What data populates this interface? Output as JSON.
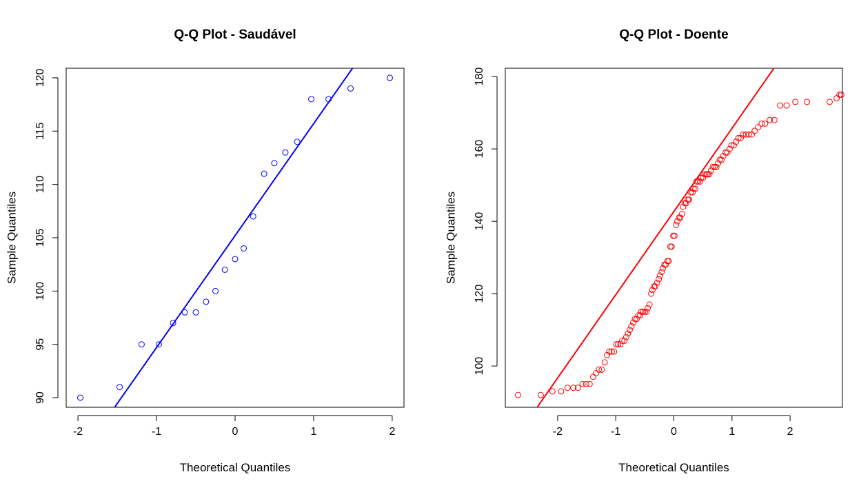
{
  "chart_data": [
    {
      "type": "scatter",
      "title": "Q-Q Plot - Saudável",
      "xlabel": "Theoretical Quantiles",
      "ylabel": "Sample Quantiles",
      "xlim": [
        -2.15,
        2.15
      ],
      "ylim": [
        89.1,
        120.9
      ],
      "xticks": [
        -2,
        -1,
        0,
        1,
        2
      ],
      "yticks": [
        90,
        95,
        100,
        105,
        110,
        115,
        120
      ],
      "point_color": "#0000ff",
      "line_color": "#0000ff",
      "grid": false,
      "points": [
        [
          -1.97,
          90
        ],
        [
          -1.47,
          91
        ],
        [
          -1.19,
          95
        ],
        [
          -0.97,
          95
        ],
        [
          -0.79,
          97
        ],
        [
          -0.64,
          98
        ],
        [
          -0.5,
          98
        ],
        [
          -0.37,
          99
        ],
        [
          -0.25,
          100
        ],
        [
          -0.13,
          102
        ],
        [
          0.0,
          103
        ],
        [
          0.11,
          104
        ],
        [
          0.23,
          107
        ],
        [
          0.37,
          111
        ],
        [
          0.5,
          112
        ],
        [
          0.64,
          113
        ],
        [
          0.79,
          114
        ],
        [
          0.97,
          118
        ],
        [
          1.19,
          118
        ],
        [
          1.47,
          119
        ],
        [
          1.97,
          120
        ]
      ],
      "line": {
        "intercept": 105.2,
        "slope": 10.5
      }
    },
    {
      "type": "scatter",
      "title": "Q-Q Plot - Doente",
      "xlabel": "Theoretical Quantiles",
      "ylabel": "Sample Quantiles",
      "xlim": [
        -2.9,
        2.9
      ],
      "ylim": [
        88.6,
        182.3
      ],
      "xticks": [
        -2,
        -1,
        0,
        1,
        2
      ],
      "yticks": [
        100,
        120,
        140,
        160,
        180
      ],
      "point_color": "#ff0000",
      "line_color": "#ff0000",
      "grid": false,
      "points": [
        [
          -2.68,
          92
        ],
        [
          -2.29,
          92
        ],
        [
          -2.09,
          93
        ],
        [
          -1.94,
          93
        ],
        [
          -1.83,
          94
        ],
        [
          -1.73,
          94
        ],
        [
          -1.65,
          94
        ],
        [
          -1.57,
          95
        ],
        [
          -1.51,
          95
        ],
        [
          -1.45,
          95
        ],
        [
          -1.39,
          97
        ],
        [
          -1.34,
          98
        ],
        [
          -1.29,
          99
        ],
        [
          -1.24,
          99
        ],
        [
          -1.19,
          101
        ],
        [
          -1.15,
          103
        ],
        [
          -1.11,
          104
        ],
        [
          -1.07,
          104
        ],
        [
          -1.03,
          104
        ],
        [
          -0.99,
          106
        ],
        [
          -0.96,
          106
        ],
        [
          -0.92,
          106
        ],
        [
          -0.89,
          107
        ],
        [
          -0.85,
          107
        ],
        [
          -0.82,
          108
        ],
        [
          -0.79,
          109
        ],
        [
          -0.76,
          110
        ],
        [
          -0.73,
          111
        ],
        [
          -0.7,
          112
        ],
        [
          -0.67,
          113
        ],
        [
          -0.64,
          113
        ],
        [
          -0.61,
          114
        ],
        [
          -0.58,
          114
        ],
        [
          -0.56,
          115
        ],
        [
          -0.53,
          115
        ],
        [
          -0.5,
          115
        ],
        [
          -0.47,
          115
        ],
        [
          -0.45,
          116
        ],
        [
          -0.42,
          117
        ],
        [
          -0.39,
          120
        ],
        [
          -0.37,
          121
        ],
        [
          -0.34,
          122
        ],
        [
          -0.32,
          122
        ],
        [
          -0.29,
          123
        ],
        [
          -0.26,
          124
        ],
        [
          -0.24,
          125
        ],
        [
          -0.21,
          126
        ],
        [
          -0.19,
          127
        ],
        [
          -0.16,
          128
        ],
        [
          -0.14,
          128
        ],
        [
          -0.11,
          129
        ],
        [
          -0.09,
          129
        ],
        [
          -0.06,
          133
        ],
        [
          -0.04,
          133
        ],
        [
          -0.01,
          136
        ],
        [
          0.01,
          136
        ],
        [
          0.04,
          139
        ],
        [
          0.06,
          140
        ],
        [
          0.09,
          141
        ],
        [
          0.11,
          141
        ],
        [
          0.14,
          142
        ],
        [
          0.16,
          144
        ],
        [
          0.19,
          145
        ],
        [
          0.21,
          145
        ],
        [
          0.24,
          146
        ],
        [
          0.26,
          146
        ],
        [
          0.29,
          148
        ],
        [
          0.32,
          148
        ],
        [
          0.34,
          149
        ],
        [
          0.37,
          149
        ],
        [
          0.39,
          151
        ],
        [
          0.42,
          151
        ],
        [
          0.45,
          151
        ],
        [
          0.47,
          152
        ],
        [
          0.5,
          152
        ],
        [
          0.53,
          153
        ],
        [
          0.56,
          153
        ],
        [
          0.58,
          153
        ],
        [
          0.61,
          153
        ],
        [
          0.64,
          154
        ],
        [
          0.67,
          155
        ],
        [
          0.7,
          155
        ],
        [
          0.73,
          155
        ],
        [
          0.76,
          156
        ],
        [
          0.79,
          157
        ],
        [
          0.82,
          157
        ],
        [
          0.85,
          158
        ],
        [
          0.89,
          159
        ],
        [
          0.92,
          159
        ],
        [
          0.96,
          160
        ],
        [
          0.99,
          161
        ],
        [
          1.03,
          161
        ],
        [
          1.07,
          162
        ],
        [
          1.11,
          163
        ],
        [
          1.15,
          163
        ],
        [
          1.19,
          164
        ],
        [
          1.24,
          164
        ],
        [
          1.29,
          164
        ],
        [
          1.34,
          164
        ],
        [
          1.39,
          165
        ],
        [
          1.45,
          166
        ],
        [
          1.51,
          167
        ],
        [
          1.57,
          167
        ],
        [
          1.65,
          168
        ],
        [
          1.73,
          168
        ],
        [
          1.83,
          172
        ],
        [
          1.94,
          172
        ],
        [
          2.09,
          173
        ],
        [
          2.29,
          173
        ],
        [
          2.68,
          173
        ],
        [
          2.8,
          174
        ],
        [
          2.85,
          175
        ],
        [
          2.88,
          175
        ]
      ],
      "line": {
        "intercept": 142.7,
        "slope": 23.0
      }
    }
  ]
}
